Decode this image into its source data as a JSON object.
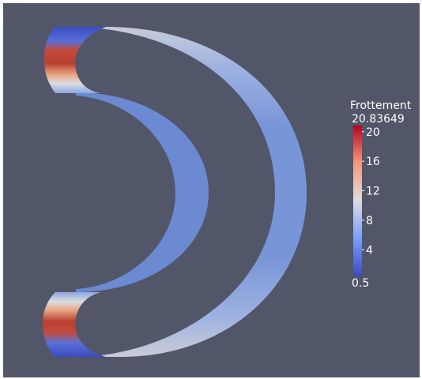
{
  "viewer": {
    "background_color": "#525669"
  },
  "scalar_bar": {
    "title": "Frottement",
    "max_label": "20.83649",
    "min_label": "0.5",
    "ticks": [
      {
        "value": 20,
        "label": "20"
      },
      {
        "value": 16,
        "label": "16"
      },
      {
        "value": 12,
        "label": "12"
      },
      {
        "value": 8,
        "label": "8"
      },
      {
        "value": 4,
        "label": "4"
      }
    ],
    "range": [
      0.5,
      20.83649
    ],
    "colormap": "cool-to-warm",
    "colors": {
      "low": "#3b4cc0",
      "mid": "#dddddd",
      "high": "#b40426"
    }
  },
  "model": {
    "inner_band_color": "#6b8ad2",
    "outer_band_color": "#7392d8",
    "caps": {
      "low_color": "#3b4cc0",
      "high_color": "#b40426"
    }
  }
}
